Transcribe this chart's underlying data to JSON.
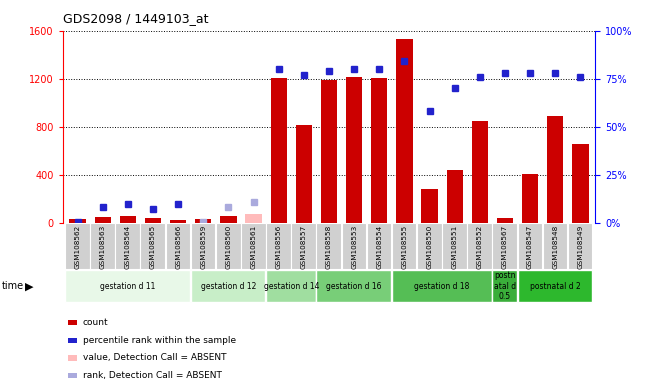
{
  "title": "GDS2098 / 1449103_at",
  "samples": [
    "GSM108562",
    "GSM108563",
    "GSM108564",
    "GSM108565",
    "GSM108566",
    "GSM108559",
    "GSM108560",
    "GSM108561",
    "GSM108556",
    "GSM108557",
    "GSM108558",
    "GSM108553",
    "GSM108554",
    "GSM108555",
    "GSM108550",
    "GSM108551",
    "GSM108552",
    "GSM108567",
    "GSM108547",
    "GSM108548",
    "GSM108549"
  ],
  "groups": [
    {
      "label": "gestation d 11",
      "start": 0,
      "end": 5,
      "color": "#e8f8e8"
    },
    {
      "label": "gestation d 12",
      "start": 5,
      "end": 8,
      "color": "#c8eec8"
    },
    {
      "label": "gestation d 14",
      "start": 8,
      "end": 10,
      "color": "#a0dea0"
    },
    {
      "label": "gestation d 16",
      "start": 10,
      "end": 13,
      "color": "#78ce78"
    },
    {
      "label": "gestation d 18",
      "start": 13,
      "end": 17,
      "color": "#55be55"
    },
    {
      "label": "postn\natal d\n0.5",
      "start": 17,
      "end": 18,
      "color": "#3aae3a"
    },
    {
      "label": "postnatal d 2",
      "start": 18,
      "end": 21,
      "color": "#2db82d"
    }
  ],
  "count_values": [
    28,
    50,
    55,
    38,
    22,
    28,
    58,
    75,
    1205,
    815,
    1190,
    1215,
    1210,
    1530,
    280,
    440,
    845,
    38,
    410,
    890,
    660
  ],
  "value_absent": [
    false,
    false,
    false,
    false,
    false,
    false,
    false,
    true,
    false,
    false,
    false,
    false,
    false,
    false,
    false,
    false,
    false,
    false,
    false,
    false,
    false
  ],
  "rank_percentile": [
    0.3,
    8,
    9.5,
    7,
    10,
    0.3,
    8,
    11,
    80,
    77,
    79,
    80,
    80,
    84,
    58,
    70,
    76,
    78,
    78,
    78,
    76
  ],
  "rank_absent": [
    false,
    false,
    false,
    false,
    false,
    true,
    true,
    true,
    false,
    false,
    false,
    false,
    false,
    false,
    false,
    false,
    false,
    false,
    false,
    false,
    false
  ],
  "ylim_left": [
    0,
    1600
  ],
  "ylim_right": [
    0,
    100
  ],
  "yticks_left": [
    0,
    400,
    800,
    1200,
    1600
  ],
  "yticks_right": [
    0,
    25,
    50,
    75,
    100
  ],
  "bar_color": "#cc0000",
  "rank_color": "#2222cc",
  "absent_bar_color": "#ffbbbb",
  "absent_rank_color": "#aaaadd",
  "legend_items": [
    {
      "color": "#cc0000",
      "label": "count"
    },
    {
      "color": "#2222cc",
      "label": "percentile rank within the sample"
    },
    {
      "color": "#ffbbbb",
      "label": "value, Detection Call = ABSENT"
    },
    {
      "color": "#aaaadd",
      "label": "rank, Detection Call = ABSENT"
    }
  ]
}
